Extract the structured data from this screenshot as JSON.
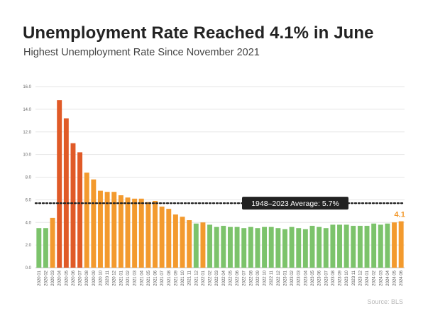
{
  "title": "Unemployment Rate Reached 4.1% in June",
  "subtitle": "Highest Unemployment Rate Since November 2021",
  "source": "Source: BLS",
  "chart_data": {
    "type": "bar",
    "title": "Unemployment Rate Reached 4.1% in June",
    "subtitle": "Highest Unemployment Rate Since November 2021",
    "xlabel": "",
    "ylabel": "",
    "ylim": [
      0,
      16
    ],
    "yticks": [
      "0.0",
      "2.0",
      "4.0",
      "6.0",
      "8.0",
      "10.0",
      "12.0",
      "14.0",
      "16.0"
    ],
    "grid": true,
    "categories": [
      "2020 01",
      "2020 02",
      "2020 03",
      "2020 04",
      "2020 05",
      "2020 06",
      "2020 07",
      "2020 08",
      "2020 09",
      "2020 10",
      "2020 11",
      "2020 12",
      "2021 01",
      "2021 02",
      "2021 03",
      "2021 04",
      "2021 05",
      "2021 06",
      "2021 07",
      "2021 08",
      "2021 09",
      "2021 10",
      "2021 11",
      "2021 12",
      "2022 01",
      "2022 02",
      "2022 03",
      "2022 04",
      "2022 05",
      "2022 06",
      "2022 07",
      "2022 08",
      "2022 09",
      "2022 10",
      "2022 11",
      "2022 12",
      "2023 01",
      "2023 02",
      "2023 03",
      "2023 04",
      "2023 05",
      "2023 06",
      "2023 07",
      "2023 08",
      "2023 09",
      "2023 10",
      "2023 11",
      "2023 12",
      "2024 01",
      "2024 02",
      "2024 03",
      "2024 04",
      "2024 05",
      "2024 06"
    ],
    "values": [
      3.5,
      3.5,
      4.4,
      14.8,
      13.2,
      11.0,
      10.2,
      8.4,
      7.8,
      6.8,
      6.7,
      6.7,
      6.4,
      6.2,
      6.1,
      6.1,
      5.8,
      5.9,
      5.4,
      5.2,
      4.7,
      4.5,
      4.2,
      3.9,
      4.0,
      3.8,
      3.6,
      3.7,
      3.6,
      3.6,
      3.5,
      3.6,
      3.5,
      3.6,
      3.6,
      3.5,
      3.4,
      3.6,
      3.5,
      3.4,
      3.7,
      3.6,
      3.5,
      3.8,
      3.8,
      3.8,
      3.7,
      3.7,
      3.7,
      3.9,
      3.8,
      3.9,
      4.0,
      4.1
    ],
    "bar_colors": [
      "#7cc36b",
      "#7cc36b",
      "#f39a2e",
      "#e05a27",
      "#e05a27",
      "#e05a27",
      "#e05a27",
      "#f39a2e",
      "#f39a2e",
      "#f39a2e",
      "#f39a2e",
      "#f39a2e",
      "#f39a2e",
      "#f39a2e",
      "#f39a2e",
      "#f39a2e",
      "#f39a2e",
      "#f39a2e",
      "#f39a2e",
      "#f39a2e",
      "#f39a2e",
      "#f39a2e",
      "#f39a2e",
      "#7cc36b",
      "#f39a2e",
      "#7cc36b",
      "#7cc36b",
      "#7cc36b",
      "#7cc36b",
      "#7cc36b",
      "#7cc36b",
      "#7cc36b",
      "#7cc36b",
      "#7cc36b",
      "#7cc36b",
      "#7cc36b",
      "#7cc36b",
      "#7cc36b",
      "#7cc36b",
      "#7cc36b",
      "#7cc36b",
      "#7cc36b",
      "#7cc36b",
      "#7cc36b",
      "#7cc36b",
      "#7cc36b",
      "#7cc36b",
      "#7cc36b",
      "#7cc36b",
      "#7cc36b",
      "#7cc36b",
      "#7cc36b",
      "#f39a2e",
      "#f39a2e"
    ],
    "reference_line": {
      "value": 5.7,
      "label": "1948–2023 Average: 5.7%",
      "style": "dotted",
      "color": "#222222"
    },
    "last_value_label": "4.1",
    "colors": {
      "green": "#7cc36b",
      "orange": "#f39a2e",
      "red": "#e05a27",
      "label_accent": "#f39a2e",
      "annotation_bg": "#222222"
    }
  }
}
